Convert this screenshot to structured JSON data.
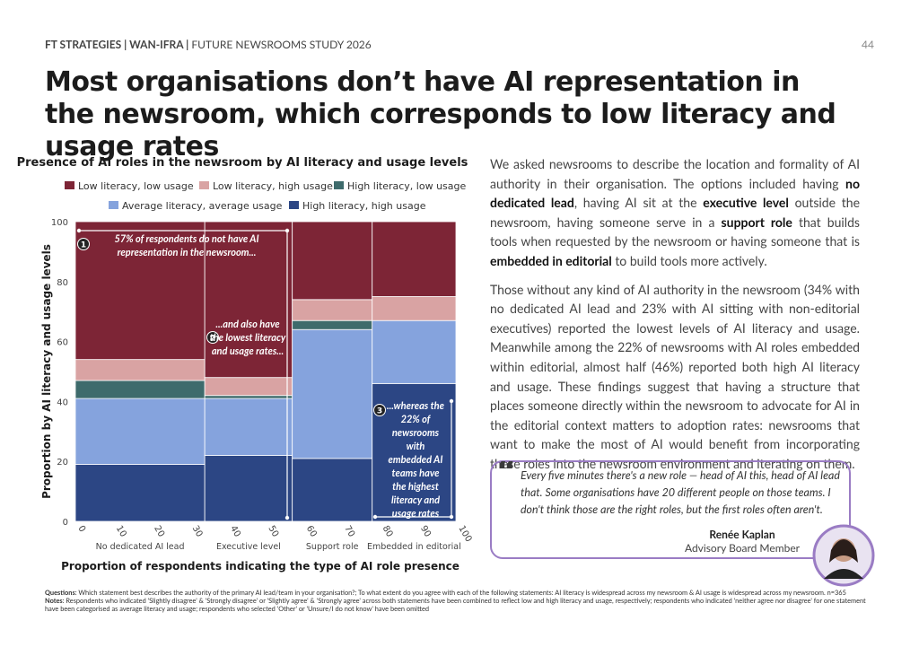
{
  "header": {
    "brand": "FT STRATEGIES | WAN-IFRA |",
    "study": "FUTURE NEWSROOMS STUDY 2026",
    "page": "44"
  },
  "title": "Most organisations don’t have AI representation in the newsroom, which corresponds to low literacy and usage rates",
  "chart_data": {
    "type": "mekko",
    "title": "Presence of AI roles in the newsroom by AI literacy and usage levels",
    "categories": [
      "No dedicated AI lead",
      "Executive level",
      "Support role",
      "Embedded in editorial"
    ],
    "widths": [
      34,
      23,
      21,
      22
    ],
    "series": [
      {
        "name": "Low literacy, low usage",
        "color": "#7d2536",
        "values": [
          46,
          52,
          26,
          25
        ]
      },
      {
        "name": "Low literacy, high usage",
        "color": "#d9a3a3",
        "values": [
          7,
          6,
          7,
          8
        ]
      },
      {
        "name": "High literacy, low usage",
        "color": "#3e6b6c",
        "values": [
          6,
          1,
          3,
          0
        ]
      },
      {
        "name": "Average literacy, average usage",
        "color": "#85a3dd",
        "values": [
          22,
          19,
          43,
          21
        ]
      },
      {
        "name": "High literacy, high usage",
        "color": "#2c4684",
        "values": [
          19,
          22,
          21,
          46
        ]
      }
    ],
    "xlim": [
      0,
      100
    ],
    "xticks": [
      0,
      10,
      20,
      30,
      40,
      50,
      60,
      70,
      80,
      90,
      100
    ],
    "ylim": [
      0,
      100
    ],
    "yticks": [
      0,
      20,
      40,
      60,
      80,
      100
    ],
    "x_label": "Proportion of respondents indicating the type of AI role presence",
    "y_label": "Proportion by AI literacy and usage levels",
    "annotations": [
      {
        "number": "1",
        "text": "57% of respondents do not have AI representation in the newsroom..."
      },
      {
        "number": "2",
        "text": "...and also have the lowest literacy and usage rates..."
      },
      {
        "number": "3",
        "text": "...whereas the 22% of newsrooms with embedded AI teams have the highest literacy and usage rates"
      }
    ]
  },
  "body": [
    [
      {
        "text": "We asked newsrooms to describe the location and formality of AI authority in their organisation. The options included having ",
        "bold": false
      },
      {
        "text": "no dedicated lead",
        "bold": true
      },
      {
        "text": ", having AI sit at the ",
        "bold": false
      },
      {
        "text": "executive level",
        "bold": true
      },
      {
        "text": " outside the newsroom, having someone serve in a ",
        "bold": false
      },
      {
        "text": "support role",
        "bold": true
      },
      {
        "text": " that builds tools when requested  by the newsroom or having someone that is ",
        "bold": false
      },
      {
        "text": "embedded in editorial",
        "bold": true
      },
      {
        "text": " to build tools more actively.",
        "bold": false
      }
    ],
    [
      {
        "text": "Those without any kind of AI authority in the newsroom (34% with no dedicated AI lead and 23% with AI sitting with non-editorial executives) reported the lowest levels of AI literacy and usage. Meanwhile among the 22% of newsrooms with AI roles embedded within editorial, almost half (46%) reported both high AI literacy and usage. These findings suggest that having a structure that places someone directly within the newsroom to advocate for AI in the editorial context matters to adoption rates: newsrooms that want to make the most of AI would benefit from incorporating these roles into the newsroom environment and iterating on them.",
        "bold": false
      }
    ]
  ],
  "quote": {
    "text": "Every five minutes there's a new role — head of AI this, head of AI lead that. Some organisations have 20 different people on those teams. I don't think those are the right roles, but the first roles often aren't.",
    "name": "Renée Kaplan",
    "role": "Advisory Board Member"
  },
  "notes": {
    "questions_label": "Questions",
    "questions": ": Which statement best describes the authority of the primary AI lead/team in your organisation?; To what extent do you agree with each of the following statements: AI literacy is widespread across my newsroom & AI usage is widespread across my newsroom. n=365",
    "notes_label": "Notes",
    "notes": ": Respondents who indicated 'Slightly disagree' & 'Strongly disagree' or 'Slightly agree' & 'Strongly agree' across both statements have been combined to reflect low and high literacy and usage, respectively; respondents who indicated 'neither agree nor disagree' for one statement have been categorised as average literacy and usage;  respondents who selected 'Other' or 'Unsure/I do not know' have been omitted"
  }
}
